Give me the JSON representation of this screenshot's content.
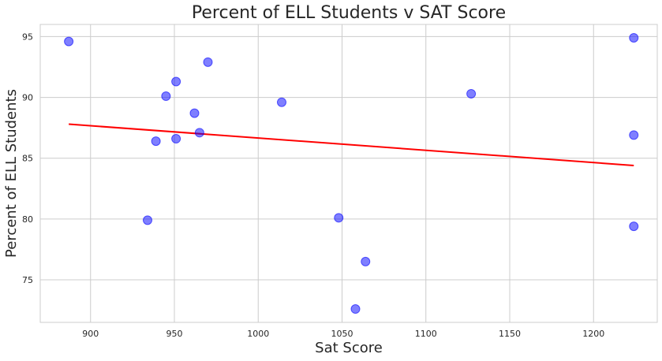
{
  "chart_data": {
    "type": "scatter",
    "title": "Percent of ELL Students v SAT Score",
    "xlabel": "Sat Score",
    "ylabel": "Percent of ELL Students",
    "xlim": [
      870,
      1238
    ],
    "ylim": [
      71.5,
      96.0
    ],
    "xticks": [
      900,
      950,
      1000,
      1050,
      1100,
      1150,
      1200
    ],
    "yticks": [
      75,
      80,
      85,
      90,
      95
    ],
    "grid": true,
    "colors": {
      "points": "#0000ff",
      "trendline": "#ff0000"
    },
    "points": [
      {
        "x": 887,
        "y": 94.6
      },
      {
        "x": 934,
        "y": 79.9
      },
      {
        "x": 939,
        "y": 86.4
      },
      {
        "x": 945,
        "y": 90.1
      },
      {
        "x": 951,
        "y": 91.3
      },
      {
        "x": 951,
        "y": 86.6
      },
      {
        "x": 962,
        "y": 88.7
      },
      {
        "x": 965,
        "y": 87.1
      },
      {
        "x": 970,
        "y": 92.9
      },
      {
        "x": 1014,
        "y": 89.6
      },
      {
        "x": 1048,
        "y": 80.1
      },
      {
        "x": 1058,
        "y": 72.6
      },
      {
        "x": 1064,
        "y": 76.5
      },
      {
        "x": 1127,
        "y": 90.3
      },
      {
        "x": 1224,
        "y": 94.9
      },
      {
        "x": 1224,
        "y": 86.9
      },
      {
        "x": 1224,
        "y": 79.4
      }
    ],
    "trendline": {
      "x": [
        887,
        1224
      ],
      "y": [
        87.8,
        84.4
      ]
    }
  }
}
